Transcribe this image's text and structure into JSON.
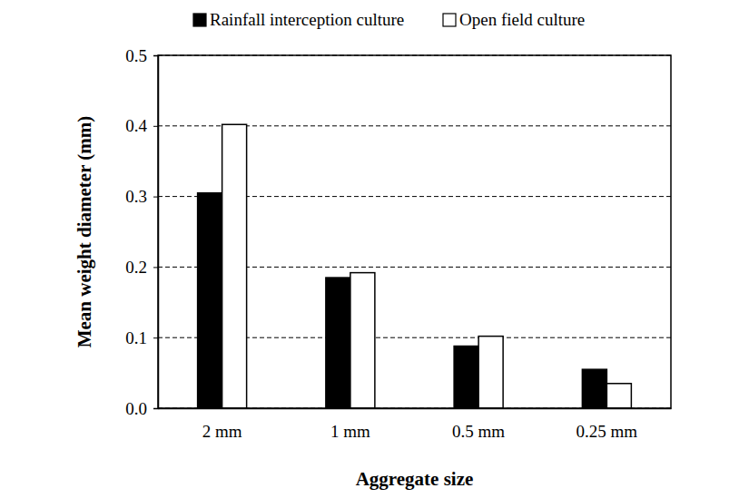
{
  "chart_data": {
    "type": "bar",
    "x_label": "Aggregate size",
    "y_label": "Mean weight diameter (mm)",
    "categories": [
      "2 mm",
      "1 mm",
      "0.5 mm",
      "0.25 mm"
    ],
    "series": [
      {
        "name": "Rainfall interception culture",
        "color": "#000000",
        "values": [
          0.305,
          0.185,
          0.088,
          0.055
        ]
      },
      {
        "name": "Open field culture",
        "color": "#ffffff",
        "values": [
          0.402,
          0.192,
          0.102,
          0.035
        ]
      }
    ],
    "ylim": [
      0,
      0.5
    ],
    "yticks": [
      {
        "value": 0,
        "label": "0.0"
      },
      {
        "value": 0.1,
        "label": "0.1"
      },
      {
        "value": 0.2,
        "label": "0.2"
      },
      {
        "value": 0.3,
        "label": "0.3"
      },
      {
        "value": 0.4,
        "label": "0.4"
      },
      {
        "value": 0.5,
        "label": "0.5"
      }
    ],
    "grid": true,
    "legend": "top"
  }
}
